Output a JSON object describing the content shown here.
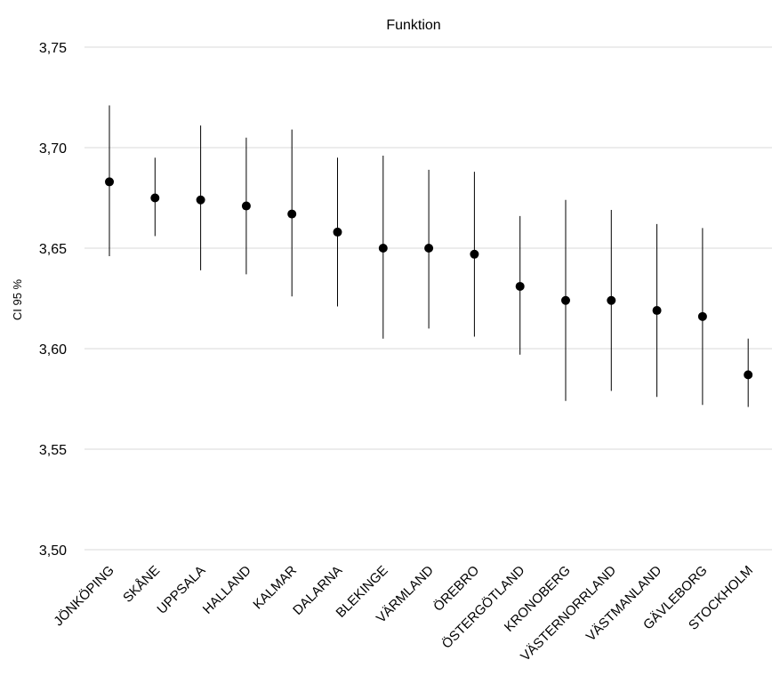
{
  "chart_data": {
    "type": "scatter",
    "title": "Funktion",
    "ylabel": "CI 95 %",
    "xlabel": "",
    "ylim": [
      3.5,
      3.75
    ],
    "y_ticks": [
      3.5,
      3.55,
      3.6,
      3.65,
      3.7,
      3.75
    ],
    "y_tick_labels": [
      "3,50",
      "3,55",
      "3,60",
      "3,65",
      "3,70",
      "3,75"
    ],
    "grid": "horizontal",
    "categories": [
      "JÖNKÖPING",
      "SKÅNE",
      "UPPSALA",
      "HALLAND",
      "KALMAR",
      "DALARNA",
      "BLEKINGE",
      "VÄRMLAND",
      "ÖREBRO",
      "ÖSTERGÖTLAND",
      "KRONOBERG",
      "VÄSTERNORRLAND",
      "VÄSTMANLAND",
      "GÄVLEBORG",
      "STOCKHOLM"
    ],
    "values": [
      3.683,
      3.675,
      3.674,
      3.671,
      3.667,
      3.658,
      3.65,
      3.65,
      3.647,
      3.631,
      3.624,
      3.624,
      3.619,
      3.616,
      3.587
    ],
    "ci_lower": [
      3.646,
      3.656,
      3.639,
      3.637,
      3.626,
      3.621,
      3.605,
      3.61,
      3.606,
      3.597,
      3.574,
      3.579,
      3.576,
      3.572,
      3.571
    ],
    "ci_upper": [
      3.721,
      3.695,
      3.711,
      3.705,
      3.709,
      3.695,
      3.696,
      3.689,
      3.688,
      3.666,
      3.674,
      3.669,
      3.662,
      3.66,
      3.605
    ],
    "colors": {
      "point": "#000000",
      "errorbar": "#000000",
      "gridline": "#d9d9d9"
    }
  }
}
